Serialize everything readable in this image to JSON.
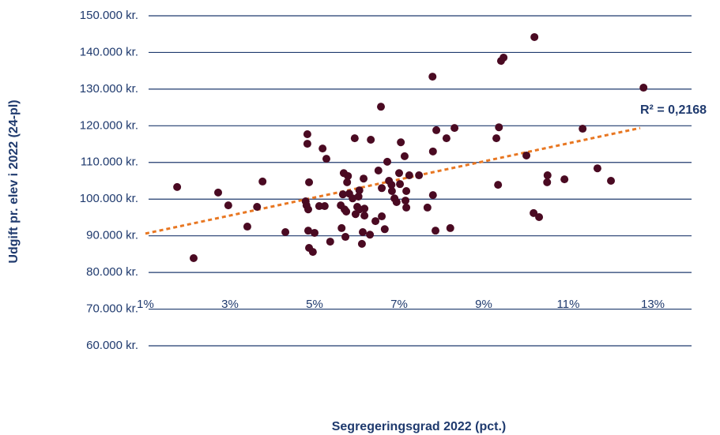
{
  "chart_data": {
    "type": "scatter",
    "x_label": "Segregeringsgrad 2022 (pct.)",
    "y_label": "Udgift pr. elev i 2022 (24-pl)",
    "color": "#4a0a22",
    "grid": true,
    "xlim": [
      1,
      14
    ],
    "ylim": [
      60000,
      150000
    ],
    "xticks": [
      {
        "value": 1,
        "label": "1%"
      },
      {
        "value": 3,
        "label": "3%"
      },
      {
        "value": 5,
        "label": "5%"
      },
      {
        "value": 7,
        "label": "7%"
      },
      {
        "value": 9,
        "label": "9%"
      },
      {
        "value": 11,
        "label": "11%"
      },
      {
        "value": 13,
        "label": "13%"
      }
    ],
    "yticks": [
      {
        "value": 60000,
        "label": "60.000 kr."
      },
      {
        "value": 70000,
        "label": "70.000 kr."
      },
      {
        "value": 80000,
        "label": "80.000 kr."
      },
      {
        "value": 90000,
        "label": "90.000 kr."
      },
      {
        "value": 100000,
        "label": "100.000 kr."
      },
      {
        "value": 110000,
        "label": "110.000 kr."
      },
      {
        "value": 120000,
        "label": "120.000 kr."
      },
      {
        "value": 130000,
        "label": "130.000 kr."
      },
      {
        "value": 140000,
        "label": "140.000 kr."
      },
      {
        "value": 150000,
        "label": "150.000 kr."
      }
    ],
    "x": [
      1.75,
      2.14,
      2.72,
      2.96,
      3.41,
      3.64,
      3.77,
      4.31,
      4.79,
      4.81,
      4.83,
      4.83,
      4.87,
      4.85,
      4.85,
      4.87,
      4.96,
      5.0,
      5.11,
      5.19,
      5.24,
      5.28,
      5.37,
      5.62,
      5.64,
      5.67,
      5.69,
      5.71,
      5.73,
      5.75,
      5.77,
      5.79,
      5.82,
      5.9,
      5.95,
      5.97,
      6.01,
      6.04,
      6.06,
      6.06,
      6.12,
      6.14,
      6.16,
      6.18,
      6.18,
      6.31,
      6.33,
      6.44,
      6.51,
      6.57,
      6.59,
      6.59,
      6.66,
      6.72,
      6.76,
      6.82,
      6.83,
      6.89,
      6.94,
      7.0,
      7.02,
      7.04,
      7.13,
      7.15,
      7.17,
      7.17,
      7.24,
      7.47,
      7.67,
      7.79,
      7.8,
      7.8,
      7.86,
      7.88,
      8.12,
      8.21,
      8.31,
      9.3,
      9.34,
      9.36,
      9.41,
      9.47,
      10.01,
      10.18,
      10.2,
      10.31,
      10.51,
      10.5,
      10.91,
      11.34,
      11.69,
      12.01,
      12.78
    ],
    "values": [
      103300,
      83900,
      101800,
      98300,
      92500,
      97900,
      104800,
      91000,
      99400,
      98300,
      117700,
      115100,
      104600,
      97200,
      91400,
      86700,
      85600,
      90800,
      98100,
      113800,
      98100,
      111000,
      88400,
      98300,
      92100,
      101300,
      107100,
      97200,
      89700,
      96600,
      104600,
      106300,
      101500,
      100200,
      116600,
      95900,
      97900,
      100700,
      97200,
      102400,
      87800,
      91000,
      105600,
      97400,
      95500,
      90300,
      116200,
      94000,
      107800,
      125200,
      95300,
      103000,
      91800,
      110200,
      105000,
      103900,
      102200,
      100200,
      99200,
      107100,
      104100,
      115500,
      111700,
      99600,
      97700,
      102200,
      106500,
      106500,
      97700,
      133400,
      113000,
      101100,
      91400,
      118800,
      116600,
      92100,
      119400,
      116600,
      103900,
      119600,
      137700,
      138600,
      111900,
      96200,
      144200,
      95100,
      106500,
      104600,
      105400,
      119200,
      108400,
      105000,
      130400
    ],
    "trendline": {
      "color": "#e87722",
      "x": [
        1,
        12.7
      ],
      "values": [
        90600,
        119400
      ]
    },
    "annotation": "R² = 0,2168"
  }
}
